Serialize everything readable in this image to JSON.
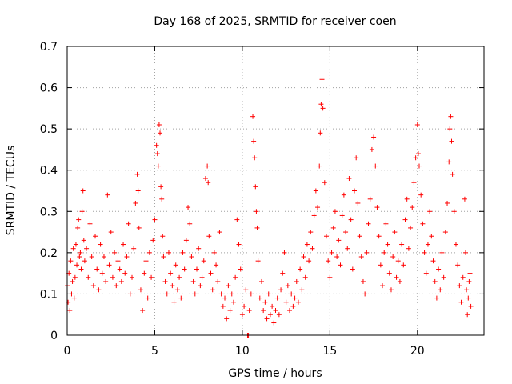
{
  "chart_data": {
    "type": "scatter",
    "title": "Day 168 of 2025, SRMTID for receiver coen",
    "xlabel": "GPS time / hours",
    "ylabel": "SRMTID / TECUs",
    "xlim": [
      0,
      23.8
    ],
    "ylim": [
      0,
      0.7
    ],
    "xticks": [
      0,
      5,
      10,
      15,
      20
    ],
    "xtick_labels": [
      "0",
      "5",
      "10",
      "15",
      "20"
    ],
    "yticks": [
      0,
      0.1,
      0.2,
      0.3,
      0.4,
      0.5,
      0.6,
      0.7
    ],
    "ytick_labels": [
      "0",
      "0.1",
      "0.2",
      "0.3",
      "0.4",
      "0.5",
      "0.6",
      "0.7"
    ],
    "grid": true,
    "marker": "+",
    "color": "#ff0000",
    "series": [
      {
        "name": "SRMTID",
        "points": [
          [
            0.0,
            0.12
          ],
          [
            0.05,
            0.08
          ],
          [
            0.1,
            0.15
          ],
          [
            0.15,
            0.06
          ],
          [
            0.2,
            0.18
          ],
          [
            0.25,
            0.1
          ],
          [
            0.3,
            0.13
          ],
          [
            0.35,
            0.21
          ],
          [
            0.4,
            0.09
          ],
          [
            0.45,
            0.14
          ],
          [
            0.5,
            0.22
          ],
          [
            0.55,
            0.17
          ],
          [
            0.6,
            0.26
          ],
          [
            0.65,
            0.28
          ],
          [
            0.7,
            0.19
          ],
          [
            0.75,
            0.2
          ],
          [
            0.8,
            0.16
          ],
          [
            0.85,
            0.3
          ],
          [
            0.9,
            0.35
          ],
          [
            0.95,
            0.23
          ],
          [
            1.0,
            0.18
          ],
          [
            1.1,
            0.21
          ],
          [
            1.2,
            0.14
          ],
          [
            1.3,
            0.27
          ],
          [
            1.4,
            0.19
          ],
          [
            1.5,
            0.12
          ],
          [
            1.6,
            0.24
          ],
          [
            1.7,
            0.16
          ],
          [
            1.8,
            0.11
          ],
          [
            1.9,
            0.22
          ],
          [
            2.0,
            0.15
          ],
          [
            2.1,
            0.19
          ],
          [
            2.2,
            0.13
          ],
          [
            2.3,
            0.34
          ],
          [
            2.4,
            0.17
          ],
          [
            2.5,
            0.25
          ],
          [
            2.6,
            0.14
          ],
          [
            2.7,
            0.2
          ],
          [
            2.8,
            0.12
          ],
          [
            2.9,
            0.18
          ],
          [
            3.0,
            0.16
          ],
          [
            3.1,
            0.13
          ],
          [
            3.2,
            0.22
          ],
          [
            3.3,
            0.15
          ],
          [
            3.4,
            0.19
          ],
          [
            3.5,
            0.27
          ],
          [
            3.6,
            0.1
          ],
          [
            3.7,
            0.14
          ],
          [
            3.8,
            0.21
          ],
          [
            3.9,
            0.32
          ],
          [
            4.0,
            0.39
          ],
          [
            4.05,
            0.35
          ],
          [
            4.1,
            0.26
          ],
          [
            4.2,
            0.11
          ],
          [
            4.3,
            0.06
          ],
          [
            4.4,
            0.15
          ],
          [
            4.5,
            0.18
          ],
          [
            4.6,
            0.09
          ],
          [
            4.7,
            0.2
          ],
          [
            4.8,
            0.14
          ],
          [
            4.9,
            0.23
          ],
          [
            5.0,
            0.28
          ],
          [
            5.1,
            0.46
          ],
          [
            5.15,
            0.44
          ],
          [
            5.2,
            0.41
          ],
          [
            5.25,
            0.51
          ],
          [
            5.3,
            0.49
          ],
          [
            5.35,
            0.36
          ],
          [
            5.4,
            0.33
          ],
          [
            5.45,
            0.24
          ],
          [
            5.5,
            0.19
          ],
          [
            5.6,
            0.13
          ],
          [
            5.7,
            0.1
          ],
          [
            5.8,
            0.2
          ],
          [
            5.9,
            0.15
          ],
          [
            6.0,
            0.12
          ],
          [
            6.1,
            0.08
          ],
          [
            6.2,
            0.17
          ],
          [
            6.3,
            0.11
          ],
          [
            6.4,
            0.14
          ],
          [
            6.5,
            0.09
          ],
          [
            6.6,
            0.2
          ],
          [
            6.7,
            0.16
          ],
          [
            6.8,
            0.23
          ],
          [
            6.9,
            0.31
          ],
          [
            7.0,
            0.27
          ],
          [
            7.1,
            0.19
          ],
          [
            7.2,
            0.13
          ],
          [
            7.3,
            0.1
          ],
          [
            7.4,
            0.16
          ],
          [
            7.5,
            0.21
          ],
          [
            7.6,
            0.12
          ],
          [
            7.7,
            0.14
          ],
          [
            7.8,
            0.18
          ],
          [
            7.9,
            0.38
          ],
          [
            8.0,
            0.41
          ],
          [
            8.05,
            0.37
          ],
          [
            8.1,
            0.24
          ],
          [
            8.2,
            0.15
          ],
          [
            8.3,
            0.11
          ],
          [
            8.4,
            0.2
          ],
          [
            8.5,
            0.17
          ],
          [
            8.6,
            0.13
          ],
          [
            8.7,
            0.25
          ],
          [
            8.8,
            0.1
          ],
          [
            8.9,
            0.07
          ],
          [
            9.0,
            0.09
          ],
          [
            9.1,
            0.04
          ],
          [
            9.2,
            0.12
          ],
          [
            9.3,
            0.06
          ],
          [
            9.4,
            0.1
          ],
          [
            9.5,
            0.08
          ],
          [
            9.6,
            0.14
          ],
          [
            9.7,
            0.28
          ],
          [
            9.8,
            0.22
          ],
          [
            9.9,
            0.16
          ],
          [
            10.0,
            0.05
          ],
          [
            10.1,
            0.07
          ],
          [
            10.2,
            0.11
          ],
          [
            10.3,
            0.0
          ],
          [
            10.35,
            0.0
          ],
          [
            10.4,
            0.06
          ],
          [
            10.5,
            0.1
          ],
          [
            10.6,
            0.53
          ],
          [
            10.65,
            0.47
          ],
          [
            10.7,
            0.43
          ],
          [
            10.75,
            0.36
          ],
          [
            10.8,
            0.3
          ],
          [
            10.85,
            0.26
          ],
          [
            10.9,
            0.18
          ],
          [
            11.0,
            0.09
          ],
          [
            11.1,
            0.13
          ],
          [
            11.2,
            0.06
          ],
          [
            11.3,
            0.08
          ],
          [
            11.4,
            0.04
          ],
          [
            11.5,
            0.1
          ],
          [
            11.6,
            0.05
          ],
          [
            11.7,
            0.07
          ],
          [
            11.8,
            0.03
          ],
          [
            11.9,
            0.06
          ],
          [
            12.0,
            0.09
          ],
          [
            12.1,
            0.05
          ],
          [
            12.2,
            0.11
          ],
          [
            12.3,
            0.15
          ],
          [
            12.4,
            0.2
          ],
          [
            12.5,
            0.08
          ],
          [
            12.6,
            0.12
          ],
          [
            12.7,
            0.06
          ],
          [
            12.8,
            0.1
          ],
          [
            12.9,
            0.07
          ],
          [
            13.0,
            0.09
          ],
          [
            13.1,
            0.13
          ],
          [
            13.2,
            0.08
          ],
          [
            13.3,
            0.16
          ],
          [
            13.4,
            0.11
          ],
          [
            13.5,
            0.19
          ],
          [
            13.6,
            0.14
          ],
          [
            13.7,
            0.22
          ],
          [
            13.8,
            0.18
          ],
          [
            13.9,
            0.25
          ],
          [
            14.0,
            0.21
          ],
          [
            14.1,
            0.29
          ],
          [
            14.2,
            0.35
          ],
          [
            14.3,
            0.31
          ],
          [
            14.4,
            0.41
          ],
          [
            14.45,
            0.49
          ],
          [
            14.5,
            0.56
          ],
          [
            14.55,
            0.62
          ],
          [
            14.6,
            0.55
          ],
          [
            14.7,
            0.37
          ],
          [
            14.8,
            0.24
          ],
          [
            14.9,
            0.18
          ],
          [
            15.0,
            0.14
          ],
          [
            15.1,
            0.2
          ],
          [
            15.2,
            0.26
          ],
          [
            15.3,
            0.3
          ],
          [
            15.4,
            0.19
          ],
          [
            15.5,
            0.23
          ],
          [
            15.6,
            0.17
          ],
          [
            15.7,
            0.29
          ],
          [
            15.8,
            0.34
          ],
          [
            15.9,
            0.25
          ],
          [
            16.0,
            0.21
          ],
          [
            16.1,
            0.38
          ],
          [
            16.2,
            0.28
          ],
          [
            16.3,
            0.16
          ],
          [
            16.4,
            0.35
          ],
          [
            16.5,
            0.43
          ],
          [
            16.6,
            0.32
          ],
          [
            16.7,
            0.24
          ],
          [
            16.8,
            0.19
          ],
          [
            16.9,
            0.13
          ],
          [
            17.0,
            0.1
          ],
          [
            17.1,
            0.2
          ],
          [
            17.2,
            0.27
          ],
          [
            17.3,
            0.33
          ],
          [
            17.4,
            0.45
          ],
          [
            17.5,
            0.48
          ],
          [
            17.6,
            0.41
          ],
          [
            17.7,
            0.31
          ],
          [
            17.8,
            0.24
          ],
          [
            17.9,
            0.17
          ],
          [
            18.0,
            0.12
          ],
          [
            18.1,
            0.2
          ],
          [
            18.2,
            0.27
          ],
          [
            18.3,
            0.22
          ],
          [
            18.4,
            0.15
          ],
          [
            18.5,
            0.11
          ],
          [
            18.6,
            0.19
          ],
          [
            18.7,
            0.25
          ],
          [
            18.8,
            0.14
          ],
          [
            18.9,
            0.18
          ],
          [
            19.0,
            0.13
          ],
          [
            19.1,
            0.22
          ],
          [
            19.2,
            0.17
          ],
          [
            19.3,
            0.28
          ],
          [
            19.4,
            0.33
          ],
          [
            19.5,
            0.21
          ],
          [
            19.6,
            0.26
          ],
          [
            19.7,
            0.31
          ],
          [
            19.8,
            0.37
          ],
          [
            19.9,
            0.43
          ],
          [
            20.0,
            0.51
          ],
          [
            20.05,
            0.44
          ],
          [
            20.1,
            0.41
          ],
          [
            20.2,
            0.34
          ],
          [
            20.3,
            0.27
          ],
          [
            20.4,
            0.2
          ],
          [
            20.5,
            0.15
          ],
          [
            20.6,
            0.22
          ],
          [
            20.7,
            0.3
          ],
          [
            20.8,
            0.24
          ],
          [
            20.9,
            0.18
          ],
          [
            21.0,
            0.13
          ],
          [
            21.1,
            0.09
          ],
          [
            21.2,
            0.16
          ],
          [
            21.3,
            0.11
          ],
          [
            21.4,
            0.2
          ],
          [
            21.5,
            0.14
          ],
          [
            21.6,
            0.25
          ],
          [
            21.7,
            0.32
          ],
          [
            21.8,
            0.42
          ],
          [
            21.85,
            0.5
          ],
          [
            21.9,
            0.53
          ],
          [
            21.95,
            0.47
          ],
          [
            22.0,
            0.39
          ],
          [
            22.1,
            0.3
          ],
          [
            22.2,
            0.22
          ],
          [
            22.3,
            0.17
          ],
          [
            22.4,
            0.12
          ],
          [
            22.5,
            0.08
          ],
          [
            22.6,
            0.14
          ],
          [
            22.7,
            0.33
          ],
          [
            22.75,
            0.2
          ],
          [
            22.8,
            0.11
          ],
          [
            22.85,
            0.05
          ],
          [
            22.9,
            0.09
          ],
          [
            22.95,
            0.13
          ],
          [
            23.0,
            0.15
          ],
          [
            23.05,
            0.07
          ]
        ]
      }
    ]
  }
}
